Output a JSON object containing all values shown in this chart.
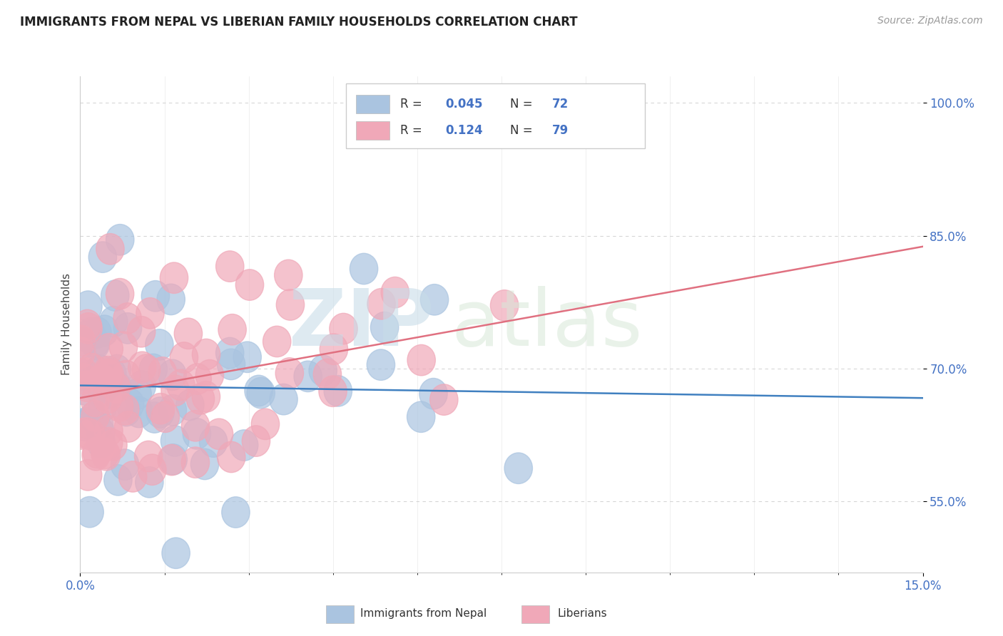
{
  "title": "IMMIGRANTS FROM NEPAL VS LIBERIAN FAMILY HOUSEHOLDS CORRELATION CHART",
  "source": "Source: ZipAtlas.com",
  "ylabel": "Family Households",
  "xmin": 0.0,
  "xmax": 15.0,
  "ymin": 47.0,
  "ymax": 103.0,
  "nepal_R": 0.045,
  "nepal_N": 72,
  "liberia_R": 0.124,
  "liberia_N": 79,
  "nepal_color": "#aac4e0",
  "liberia_color": "#f0a8b8",
  "nepal_line_color": "#4080c0",
  "liberia_line_color": "#e07080",
  "background_color": "#ffffff",
  "grid_color": "#cccccc",
  "title_color": "#222222",
  "ytick_vals": [
    55.0,
    70.0,
    85.0,
    100.0
  ],
  "ytick_labels": [
    "55.0%",
    "70.0%",
    "85.0%",
    "100.0%"
  ]
}
